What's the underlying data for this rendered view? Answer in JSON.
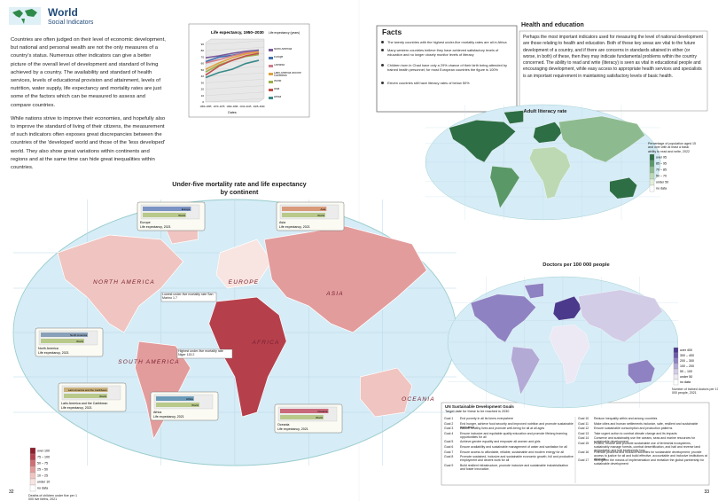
{
  "header": {
    "title": "World",
    "subtitle": "Social Indicators"
  },
  "intro": [
    "Countries are often judged on their level of economic development, but national and personal wealth are not the only measures of a country's status. Numerous other indicators can give a better picture of the overall level of development and standard of living achieved by a country. The availability and standard of health services, levels of educational provision and attainment, levels of nutrition, water supply, life expectancy and mortality rates are just some of the factors which can be measured to assess and compare countries.",
    "While nations strive to improve their economies, and hopefully also to improve the standard of living of their citizens, the measurement of such indicators often exposes great discrepancies between the countries of the 'developed' world and those of the 'less developed' world. They also show great variations within continents and regions and at the same time can hide great inequalities within countries."
  ],
  "life_chart": {
    "type": "line",
    "title": "Life expectancy, 1950–2030",
    "y_label": "Life expectancy (years)",
    "x_label": "Dates",
    "categories": [
      "1950–1955",
      "1970–1975",
      "1990–1995",
      "2010–2015",
      "2025–2030"
    ],
    "ylim": [
      0,
      90
    ],
    "yticks": [
      0,
      10,
      20,
      30,
      40,
      50,
      60,
      70,
      80,
      90
    ],
    "series": [
      {
        "name": "North America",
        "color": "#7a5a9a",
        "values": [
          69,
          72,
          76,
          79,
          81
        ]
      },
      {
        "name": "Europe",
        "color": "#3f6fb0",
        "values": [
          63,
          70,
          73,
          77,
          80
        ]
      },
      {
        "name": "Oceania",
        "color": "#d07a8a",
        "values": [
          61,
          66,
          72,
          77,
          79
        ]
      },
      {
        "name": "Latin America and the Caribbean",
        "color": "#e0a040",
        "values": [
          51,
          61,
          69,
          75,
          78
        ]
      },
      {
        "name": "World",
        "color": "#9ab04a",
        "values": [
          47,
          58,
          65,
          71,
          74
        ]
      },
      {
        "name": "Asia",
        "color": "#c0504d",
        "values": [
          42,
          56,
          65,
          72,
          76
        ]
      },
      {
        "name": "Africa",
        "color": "#3a8a8a",
        "values": [
          38,
          46,
          51,
          60,
          65
        ]
      }
    ]
  },
  "facts": {
    "title": "Facts",
    "items": [
      "The twenty countries with the highest under-five mortality rates are all in Africa",
      "Many western countries believe they have achieved satisfactory levels of education and no longer closely monitor levels of literacy",
      "Children born in Chad have only a 29% chance of their birth being attended by trained health personnel; for most European countries the figure is 100%",
      "Eleven countries still have literacy rates of below 50%"
    ]
  },
  "health": {
    "title": "Health and education",
    "text": "Perhaps the most important indicators used for measuring the level of national development are those relating to health and education. Both of these key areas are vital to the future development of a country, and if there are concerns in standards attained in either (or worse, in both) of these, then they may indicate fundamental problems within the country concerned. The ability to read and write (literacy) is seen as vital in educational people and encouraging development, while easy access to appropriate health services and specialists is an important requirement in maintaining satisfactory levels of basic health."
  },
  "mortality_map": {
    "title": "Under-five mortality rate and life expectancy by continent",
    "continents": [
      "NORTH AMERICA",
      "EUROPE",
      "ASIA",
      "AFRICA",
      "SOUTH AMERICA",
      "OCEANIA"
    ],
    "notes": [
      "Lowest under-five mortality rate San Marino 1.7",
      "Highest under-five mortality rate Niger 115.2"
    ],
    "legend": {
      "title": "Deaths of children under five per 1 000 live births, 2021",
      "items": [
        {
          "label": "over 100",
          "color": "#8e1f2e"
        },
        {
          "label": "75 – 100",
          "color": "#b5404c"
        },
        {
          "label": "50 – 75",
          "color": "#cf6f74"
        },
        {
          "label": "25 – 50",
          "color": "#e39c9c"
        },
        {
          "label": "10 – 25",
          "color": "#f0c4c0"
        },
        {
          "label": "under 10",
          "color": "#f8e4e0"
        },
        {
          "label": "no data",
          "color": "#ffffff"
        }
      ]
    },
    "bar_xlim": [
      0,
      90
    ],
    "insets": [
      {
        "caption": "Life expectancy, 2021",
        "bars": [
          {
            "label": "Europe",
            "value": 79,
            "color": "#7b93c4"
          },
          {
            "label": "World",
            "value": 71,
            "color": "#b8c98a"
          }
        ]
      },
      {
        "caption": "Life expectancy, 2021",
        "bars": [
          {
            "label": "Asia",
            "value": 73,
            "color": "#d99a7a"
          },
          {
            "label": "World",
            "value": 71,
            "color": "#b8c98a"
          }
        ]
      },
      {
        "caption": "Life expectancy, 2021",
        "bars": [
          {
            "label": "North America",
            "value": 77,
            "color": "#8aa0b8"
          },
          {
            "label": "World",
            "value": 71,
            "color": "#b8c98a"
          }
        ]
      },
      {
        "caption": "Life expectancy, 2021",
        "bars": [
          {
            "label": "Latin America and the Caribbean",
            "value": 72,
            "color": "#c9b07a"
          },
          {
            "label": "World",
            "value": 71,
            "color": "#b8c98a"
          }
        ]
      },
      {
        "caption": "Life expectancy, 2021",
        "bars": [
          {
            "label": "Africa",
            "value": 62,
            "color": "#6a9ab8"
          },
          {
            "label": "World",
            "value": 71,
            "color": "#b8c98a"
          }
        ]
      },
      {
        "caption": "Life expectancy, 2021",
        "bars": [
          {
            "label": "Oceania",
            "value": 79,
            "color": "#c96a7a"
          },
          {
            "label": "World",
            "value": 71,
            "color": "#b8c98a"
          }
        ]
      }
    ]
  },
  "literacy_map": {
    "title": "Adult literacy rate",
    "legend": {
      "title": "Percentage of population aged 15 and over with at least a basic ability to read and write, 2022",
      "items": [
        {
          "label": "over 95",
          "color": "#2e6e45"
        },
        {
          "label": "85 – 95",
          "color": "#5a9868"
        },
        {
          "label": "70 – 85",
          "color": "#8dbb8f"
        },
        {
          "label": "50 – 70",
          "color": "#bcd9b4"
        },
        {
          "label": "under 50",
          "color": "#e2efd8"
        },
        {
          "label": "no data",
          "color": "#ffffff"
        }
      ]
    }
  },
  "doctors_map": {
    "title": "Doctors per 100 000 people",
    "legend": {
      "title": "Number of trained doctors per 100 000 people, 2021",
      "items": [
        {
          "label": "over 400",
          "color": "#4b3a8c"
        },
        {
          "label": "300 – 400",
          "color": "#6b5aaa"
        },
        {
          "label": "200 – 300",
          "color": "#8f82c2"
        },
        {
          "label": "100 – 200",
          "color": "#b3aad6"
        },
        {
          "label": "50 – 100",
          "color": "#d2cce6"
        },
        {
          "label": "under 50",
          "color": "#ece8f4"
        },
        {
          "label": "no data",
          "color": "#ffffff"
        }
      ]
    }
  },
  "sdg": {
    "title": "UN Sustainable Development Goals",
    "subtitle": "Target date for these to be reached is 2030",
    "goals": [
      {
        "goal": "Goal 1",
        "text": "End poverty in all its forms everywhere"
      },
      {
        "goal": "Goal 2",
        "text": "End hunger, achieve food security and improved nutrition and promote sustainable agriculture"
      },
      {
        "goal": "Goal 3",
        "text": "Ensure healthy lives and promote well-being for all at all ages"
      },
      {
        "goal": "Goal 4",
        "text": "Ensure inclusive and equitable quality education and promote lifelong learning opportunities for all"
      },
      {
        "goal": "Goal 5",
        "text": "Achieve gender equality and empower all women and girls"
      },
      {
        "goal": "Goal 6",
        "text": "Ensure availability and sustainable management of water and sanitation for all"
      },
      {
        "goal": "Goal 7",
        "text": "Ensure access to affordable, reliable, sustainable and modern energy for all"
      },
      {
        "goal": "Goal 8",
        "text": "Promote sustained, inclusive and sustainable economic growth, full and productive employment and decent work for all"
      },
      {
        "goal": "Goal 9",
        "text": "Build resilient infrastructure, promote inclusive and sustainable industrialization and foster innovation"
      },
      {
        "goal": "Goal 10",
        "text": "Reduce inequality within and among countries"
      },
      {
        "goal": "Goal 11",
        "text": "Make cities and human settlements inclusive, safe, resilient and sustainable"
      },
      {
        "goal": "Goal 12",
        "text": "Ensure sustainable consumption and production patterns"
      },
      {
        "goal": "Goal 13",
        "text": "Take urgent action to combat climate change and its impacts"
      },
      {
        "goal": "Goal 14",
        "text": "Conserve and sustainably use the oceans, seas and marine resources for sustainable development"
      },
      {
        "goal": "Goal 15",
        "text": "Protect, restore and promote sustainable use of terrestrial ecosystems, sustainably manage forests, combat desertification, and halt and reverse land degradation and halt biodiversity loss"
      },
      {
        "goal": "Goal 16",
        "text": "Promote peaceful and inclusive societies for sustainable development, provide access to justice for all and build effective, accountable and inclusive institutions at all levels"
      },
      {
        "goal": "Goal 17",
        "text": "Strengthen the means of implementation and revitalize the global partnership for sustainable development"
      }
    ]
  },
  "page_numbers": [
    "32",
    "33"
  ]
}
